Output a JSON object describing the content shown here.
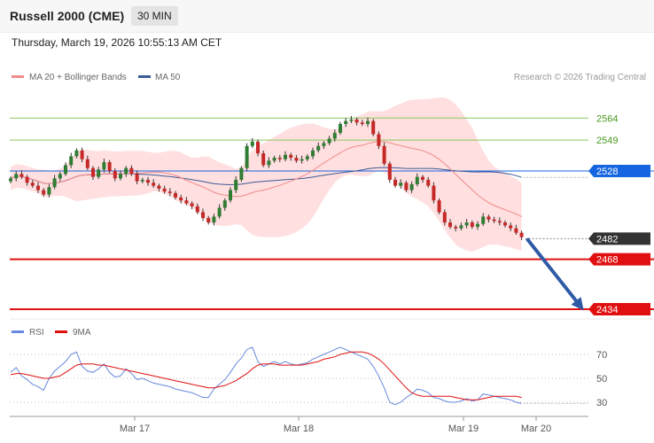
{
  "header": {
    "title": "Russell 2000 (CME)",
    "timeframe": "30 MIN",
    "timestamp": "Thursday, March 19, 2026 10:55:13 AM CET"
  },
  "copyright": "Research © 2026 Trading Central",
  "colors": {
    "ma20": "#f08a8a",
    "band": "#ffdcdc",
    "ma50": "#3b5b98",
    "up": "#2e7d32",
    "down": "#c62828",
    "resistance": "#8cc860",
    "pivot": "#1565e0",
    "support": "#e01010",
    "current": "#333333",
    "arrow": "#2f5aa6",
    "rsi": "#6688dd",
    "rsi_ma": "#e01010"
  },
  "chart_data": [
    {
      "type": "candlestick",
      "legend": [
        {
          "name": "MA 20 + Bollinger Bands",
          "color": "#f08a8a"
        },
        {
          "name": "MA 50",
          "color": "#3b5b98"
        }
      ],
      "ylim": [
        2425,
        2575
      ],
      "x_ticks": [
        "Mar 17",
        "Mar 18",
        "Mar 19",
        "Mar 20"
      ],
      "close": [
        2523,
        2526,
        2524,
        2520,
        2518,
        2515,
        2512,
        2517,
        2523,
        2526,
        2532,
        2538,
        2542,
        2536,
        2530,
        2524,
        2529,
        2534,
        2528,
        2523,
        2526,
        2530,
        2526,
        2521,
        2522,
        2520,
        2518,
        2516,
        2514,
        2513,
        2510,
        2508,
        2506,
        2504,
        2500,
        2496,
        2493,
        2497,
        2503,
        2508,
        2515,
        2522,
        2530,
        2545,
        2548,
        2540,
        2532,
        2535,
        2537,
        2536,
        2539,
        2537,
        2535,
        2536,
        2538,
        2542,
        2545,
        2547,
        2550,
        2554,
        2560,
        2562,
        2563,
        2561,
        2560,
        2562,
        2553,
        2545,
        2533,
        2522,
        2518,
        2520,
        2515,
        2519,
        2524,
        2522,
        2518,
        2508,
        2500,
        2493,
        2490,
        2489,
        2491,
        2493,
        2490,
        2492,
        2497,
        2495,
        2494,
        2493,
        2491,
        2489,
        2486,
        2483
      ],
      "levels": [
        {
          "label": "2564",
          "value": 2564,
          "kind": "resistance"
        },
        {
          "label": "2549",
          "value": 2549,
          "kind": "resistance"
        },
        {
          "label": "2528",
          "value": 2528,
          "kind": "pivot"
        },
        {
          "label": "2482",
          "value": 2482,
          "kind": "current"
        },
        {
          "label": "2468",
          "value": 2468,
          "kind": "support"
        },
        {
          "label": "2434",
          "value": 2434,
          "kind": "support"
        }
      ],
      "forecast_arrow": {
        "from": 2482,
        "to": 2436
      }
    },
    {
      "type": "line",
      "legend": [
        {
          "name": "RSI",
          "color": "#6688dd"
        },
        {
          "name": "9MA",
          "color": "#e01010"
        }
      ],
      "ylim": [
        20,
        82
      ],
      "y_ticks": [
        "70",
        "50",
        "30"
      ],
      "rsi": [
        55,
        59,
        52,
        49,
        45,
        43,
        40,
        50,
        56,
        60,
        64,
        70,
        72,
        60,
        56,
        55,
        58,
        62,
        55,
        51,
        52,
        58,
        54,
        49,
        50,
        48,
        46,
        45,
        44,
        43,
        41,
        40,
        39,
        38,
        36,
        34,
        34,
        41,
        45,
        49,
        55,
        62,
        67,
        74,
        76,
        64,
        60,
        62,
        64,
        62,
        64,
        62,
        61,
        62,
        63,
        66,
        68,
        70,
        72,
        74,
        76,
        74,
        72,
        70,
        68,
        66,
        60,
        52,
        42,
        30,
        28,
        30,
        34,
        37,
        41,
        40,
        38,
        34,
        33,
        31,
        30,
        30,
        31,
        33,
        31,
        32,
        37,
        36,
        35,
        34,
        33,
        32,
        30,
        29
      ],
      "ma9": [
        53,
        54,
        54,
        53,
        52,
        51,
        50,
        50,
        51,
        52,
        55,
        58,
        61,
        62,
        62,
        62,
        61,
        61,
        60,
        59,
        58,
        57,
        56,
        55,
        54,
        53,
        52,
        51,
        50,
        49,
        48,
        47,
        46,
        45,
        44,
        43,
        42,
        42,
        43,
        44,
        46,
        48,
        51,
        54,
        58,
        61,
        62,
        62,
        62,
        61,
        61,
        61,
        61,
        61,
        62,
        63,
        64,
        66,
        67,
        68,
        70,
        71,
        72,
        72,
        72,
        71,
        69,
        66,
        62,
        57,
        52,
        47,
        42,
        38,
        36,
        35,
        35,
        35,
        35,
        35,
        35,
        34,
        33,
        32,
        32,
        32,
        33,
        34,
        35,
        35,
        35,
        35,
        35,
        34
      ]
    }
  ]
}
